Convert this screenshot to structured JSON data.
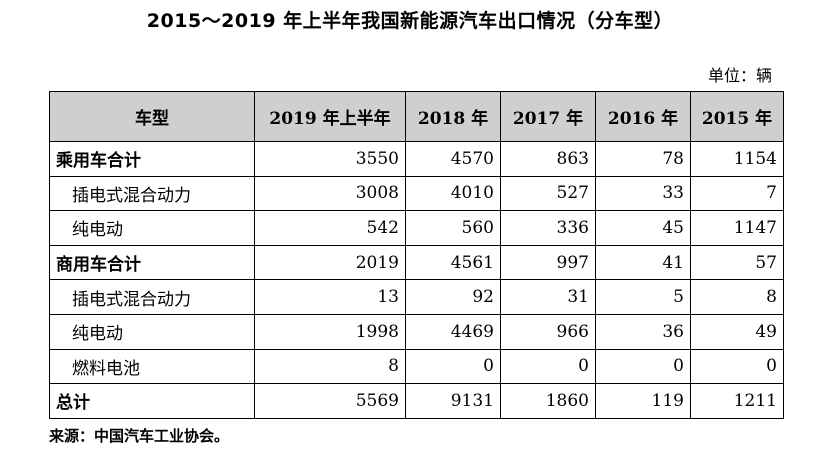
{
  "title": "2015～2019 年上半年我国新能源汽车出口情况（分车型）",
  "unit": "单位：辆",
  "table": {
    "headers": [
      "车型",
      "2019 年上半年",
      "2018 年",
      "2017 年",
      "2016 年",
      "2015 年"
    ],
    "rows": [
      {
        "label": "乘用车合计",
        "kind": "total",
        "values": [
          "3550",
          "4570",
          "863",
          "78",
          "1154"
        ]
      },
      {
        "label": "插电式混合动力",
        "kind": "sub",
        "values": [
          "3008",
          "4010",
          "527",
          "33",
          "7"
        ]
      },
      {
        "label": "纯电动",
        "kind": "sub",
        "values": [
          "542",
          "560",
          "336",
          "45",
          "1147"
        ]
      },
      {
        "label": "商用车合计",
        "kind": "total",
        "values": [
          "2019",
          "4561",
          "997",
          "41",
          "57"
        ]
      },
      {
        "label": "插电式混合动力",
        "kind": "sub",
        "values": [
          "13",
          "92",
          "31",
          "5",
          "8"
        ]
      },
      {
        "label": "纯电动",
        "kind": "sub",
        "values": [
          "1998",
          "4469",
          "966",
          "36",
          "49"
        ]
      },
      {
        "label": "燃料电池",
        "kind": "sub",
        "values": [
          "8",
          "0",
          "0",
          "0",
          "0"
        ]
      },
      {
        "label": "总计",
        "kind": "total",
        "values": [
          "5569",
          "9131",
          "1860",
          "119",
          "1211"
        ]
      }
    ]
  },
  "source": "来源：中国汽车工业协会。",
  "colors": {
    "header_bg": "#cfcfcf",
    "border": "#000000"
  }
}
